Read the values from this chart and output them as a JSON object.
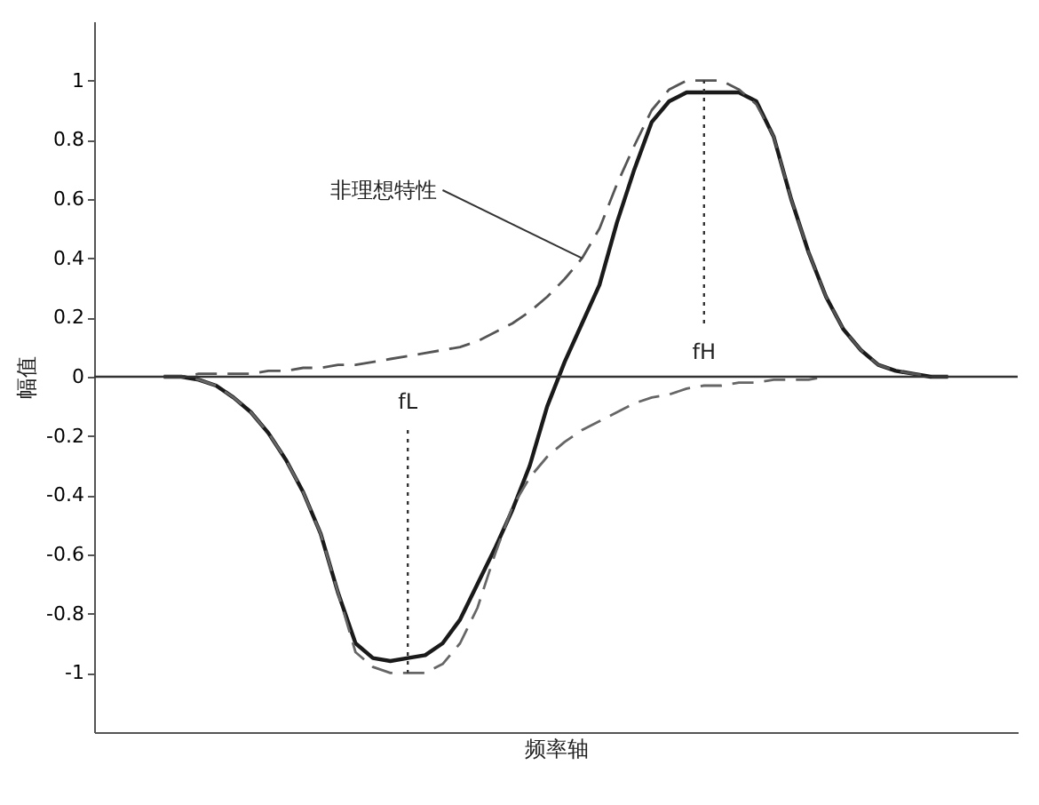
{
  "chart_data": {
    "type": "line",
    "ylabel": "幅值",
    "xlabel": "频率轴",
    "ylim": [
      -1.2,
      1.2
    ],
    "yticks": [
      -1,
      -0.8,
      -0.6,
      -0.4,
      -0.2,
      0,
      0.2,
      0.4,
      0.6,
      0.8,
      1
    ],
    "tick_labels": "y",
    "grid": false,
    "marker": "none",
    "categories": [
      null,
      null,
      null,
      null,
      null,
      null,
      null,
      null,
      null,
      null,
      null,
      null,
      null,
      null,
      null,
      null,
      null,
      null,
      null,
      null,
      null,
      null,
      null,
      null,
      null,
      null,
      null,
      null,
      null,
      null,
      null,
      null,
      null,
      null,
      null,
      null,
      null,
      null,
      null,
      null,
      null,
      null,
      null,
      null,
      null,
      null
    ],
    "series": [
      {
        "line_style": "solid",
        "color": "#1a1a1a",
        "values": [
          0,
          0,
          -0.01,
          -0.03,
          -0.07,
          -0.12,
          -0.19,
          -0.28,
          -0.39,
          -0.53,
          -0.73,
          -0.9,
          -0.95,
          -0.96,
          -0.95,
          -0.94,
          -0.9,
          -0.82,
          -0.7,
          -0.58,
          -0.45,
          -0.3,
          -0.1,
          0.05,
          0.18,
          0.31,
          0.52,
          0.7,
          0.86,
          0.93,
          0.96,
          0.96,
          0.96,
          0.96,
          0.93,
          0.81,
          0.6,
          0.42,
          0.27,
          0.16,
          0.09,
          0.04,
          0.02,
          0.01,
          0,
          0
        ]
      },
      {
        "line_style": "dashed",
        "color": "#555555",
        "values": [
          0,
          0,
          0.01,
          0.01,
          0.01,
          0.01,
          0.02,
          0.02,
          0.03,
          0.03,
          0.04,
          0.04,
          0.05,
          0.06,
          0.07,
          0.08,
          0.09,
          0.1,
          0.12,
          0.15,
          0.18,
          0.22,
          0.27,
          0.33,
          0.4,
          0.5,
          0.65,
          0.78,
          0.9,
          0.97,
          1.0,
          1.0,
          1.0,
          0.97,
          0.92,
          0.81,
          0.6,
          0.42,
          0.27,
          0.16,
          0.09,
          0.04,
          0.02,
          0.01,
          0,
          0
        ]
      },
      {
        "line_style": "dashed",
        "color": "#666666",
        "values": [
          0,
          0,
          -0.01,
          -0.03,
          -0.07,
          -0.12,
          -0.19,
          -0.28,
          -0.39,
          -0.53,
          -0.73,
          -0.93,
          -0.98,
          -1.0,
          -1.0,
          -1.0,
          -0.97,
          -0.9,
          -0.78,
          -0.6,
          -0.44,
          -0.34,
          -0.27,
          -0.22,
          -0.18,
          -0.15,
          -0.12,
          -0.09,
          -0.07,
          -0.06,
          -0.04,
          -0.03,
          -0.03,
          -0.02,
          -0.02,
          -0.01,
          -0.01,
          -0.01,
          0,
          null,
          null,
          null,
          null,
          null,
          null,
          null
        ]
      }
    ],
    "ref_lines": [
      {
        "axis": "y",
        "value": 0,
        "color": "#333333"
      }
    ],
    "annotations": [
      "非理想特性",
      "fL",
      "fH"
    ]
  }
}
